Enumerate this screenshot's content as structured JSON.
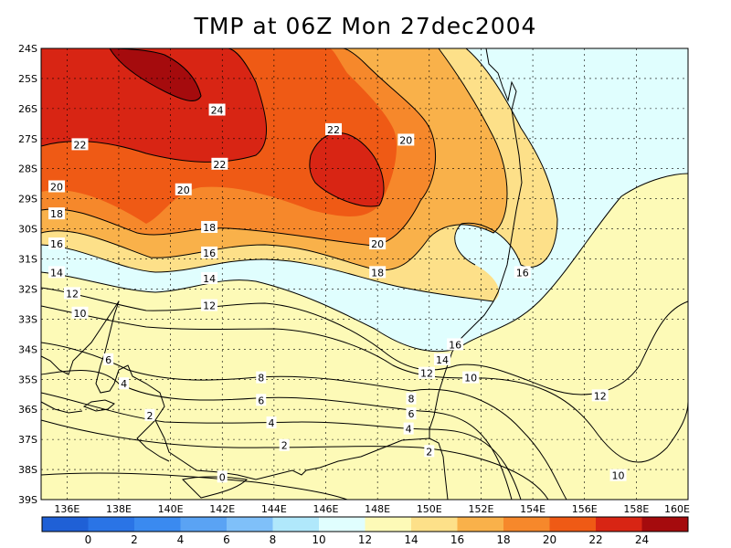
{
  "title": "TMP at 06Z Mon 27dec2004",
  "map": {
    "lat_labels": [
      "24S",
      "25S",
      "26S",
      "27S",
      "28S",
      "29S",
      "30S",
      "31S",
      "32S",
      "33S",
      "34S",
      "35S",
      "36S",
      "37S",
      "38S",
      "39S"
    ],
    "lon_labels": [
      "136E",
      "138E",
      "140E",
      "142E",
      "144E",
      "146E",
      "148E",
      "150E",
      "152E",
      "154E",
      "156E",
      "158E",
      "160E"
    ],
    "lat_range": [
      -39,
      -24
    ],
    "lon_range": [
      135,
      160
    ]
  },
  "colorbar": {
    "levels": [
      "0",
      "2",
      "4",
      "6",
      "8",
      "10",
      "12",
      "14",
      "16",
      "18",
      "20",
      "22",
      "24"
    ],
    "colors": [
      "#1f60d6",
      "#2a74e6",
      "#3a8af0",
      "#5aa3f4",
      "#7fc0f9",
      "#b0e8fb",
      "#e0fefe",
      "#fdfab7",
      "#fde089",
      "#f9b14a",
      "#f6882b",
      "#ef5a15",
      "#d82514",
      "#a50b0d"
    ]
  },
  "contour_labels": [
    {
      "text": "24",
      "lon": 141.8,
      "lat": -26.05
    },
    {
      "text": "22",
      "lon": 136.5,
      "lat": -27.2
    },
    {
      "text": "22",
      "lon": 141.9,
      "lat": -27.85
    },
    {
      "text": "22",
      "lon": 146.3,
      "lat": -26.7
    },
    {
      "text": "20",
      "lon": 149.1,
      "lat": -27.05
    },
    {
      "text": "20",
      "lon": 135.6,
      "lat": -28.6
    },
    {
      "text": "20",
      "lon": 140.5,
      "lat": -28.7
    },
    {
      "text": "20",
      "lon": 148.0,
      "lat": -30.5
    },
    {
      "text": "18",
      "lon": 135.6,
      "lat": -29.5
    },
    {
      "text": "18",
      "lon": 141.5,
      "lat": -29.95
    },
    {
      "text": "18",
      "lon": 148.0,
      "lat": -31.45
    },
    {
      "text": "16",
      "lon": 135.6,
      "lat": -30.5
    },
    {
      "text": "16",
      "lon": 141.5,
      "lat": -30.8
    },
    {
      "text": "16",
      "lon": 153.6,
      "lat": -31.45
    },
    {
      "text": "16",
      "lon": 151.0,
      "lat": -33.85
    },
    {
      "text": "14",
      "lon": 135.6,
      "lat": -31.45
    },
    {
      "text": "14",
      "lon": 141.5,
      "lat": -31.65
    },
    {
      "text": "14",
      "lon": 150.5,
      "lat": -34.35
    },
    {
      "text": "12",
      "lon": 136.2,
      "lat": -32.15
    },
    {
      "text": "12",
      "lon": 141.5,
      "lat": -32.55
    },
    {
      "text": "12",
      "lon": 149.9,
      "lat": -34.8
    },
    {
      "text": "12",
      "lon": 156.6,
      "lat": -35.55
    },
    {
      "text": "10",
      "lon": 136.5,
      "lat": -32.8
    },
    {
      "text": "10",
      "lon": 151.6,
      "lat": -34.95
    },
    {
      "text": "10",
      "lon": 157.3,
      "lat": -38.2
    },
    {
      "text": "8",
      "lon": 143.5,
      "lat": -34.95
    },
    {
      "text": "8",
      "lon": 149.3,
      "lat": -35.65
    },
    {
      "text": "6",
      "lon": 137.6,
      "lat": -34.35
    },
    {
      "text": "6",
      "lon": 143.5,
      "lat": -35.7
    },
    {
      "text": "6",
      "lon": 149.3,
      "lat": -36.15
    },
    {
      "text": "4",
      "lon": 138.2,
      "lat": -35.15
    },
    {
      "text": "4",
      "lon": 143.9,
      "lat": -36.45
    },
    {
      "text": "4",
      "lon": 149.2,
      "lat": -36.65
    },
    {
      "text": "2",
      "lon": 139.2,
      "lat": -36.2
    },
    {
      "text": "2",
      "lon": 144.4,
      "lat": -37.2
    },
    {
      "text": "2",
      "lon": 150.0,
      "lat": -37.4
    },
    {
      "text": "0",
      "lon": 142.0,
      "lat": -38.25
    }
  ]
}
